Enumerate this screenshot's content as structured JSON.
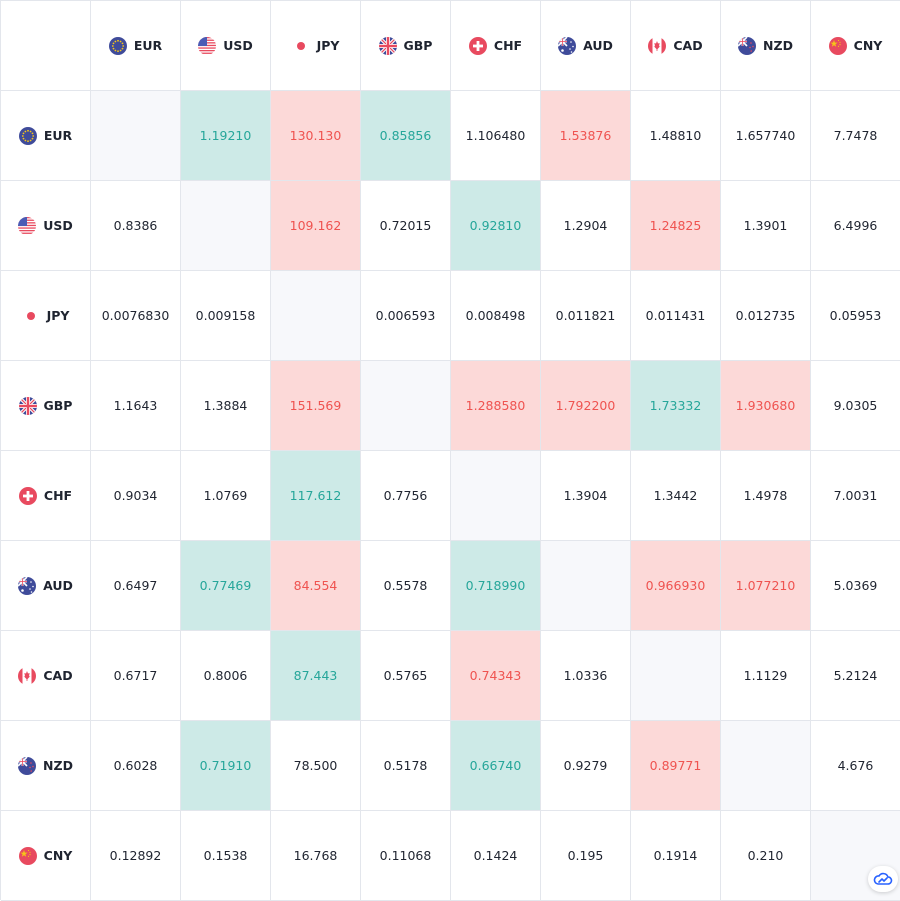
{
  "currencies": [
    {
      "code": "EUR",
      "flag_icon": "eu-flag-icon"
    },
    {
      "code": "USD",
      "flag_icon": "us-flag-icon"
    },
    {
      "code": "JPY",
      "flag_icon": "japan-flag-icon"
    },
    {
      "code": "GBP",
      "flag_icon": "uk-flag-icon"
    },
    {
      "code": "CHF",
      "flag_icon": "swiss-flag-icon"
    },
    {
      "code": "AUD",
      "flag_icon": "australia-flag-icon"
    },
    {
      "code": "CAD",
      "flag_icon": "canada-flag-icon"
    },
    {
      "code": "NZD",
      "flag_icon": "new-zealand-flag-icon"
    },
    {
      "code": "CNY",
      "flag_icon": "china-flag-icon"
    }
  ],
  "rates": [
    [
      "",
      "1.19210",
      "130.130",
      "0.85856",
      "1.106480",
      "1.53876",
      "1.48810",
      "1.657740",
      "7.7478"
    ],
    [
      "0.8386",
      "",
      "109.162",
      "0.72015",
      "0.92810",
      "1.2904",
      "1.24825",
      "1.3901",
      "6.4996"
    ],
    [
      "0.0076830",
      "0.009158",
      "",
      "0.006593",
      "0.008498",
      "0.011821",
      "0.011431",
      "0.012735",
      "0.05953"
    ],
    [
      "1.1643",
      "1.3884",
      "151.569",
      "",
      "1.288580",
      "1.792200",
      "1.73332",
      "1.930680",
      "9.0305"
    ],
    [
      "0.9034",
      "1.0769",
      "117.612",
      "0.7756",
      "",
      "1.3904",
      "1.3442",
      "1.4978",
      "7.0031"
    ],
    [
      "0.6497",
      "0.77469",
      "84.554",
      "0.5578",
      "0.718990",
      "",
      "0.966930",
      "1.077210",
      "5.0369"
    ],
    [
      "0.6717",
      "0.8006",
      "87.443",
      "0.5765",
      "0.74343",
      "1.0336",
      "",
      "1.1129",
      "5.2124"
    ],
    [
      "0.6028",
      "0.71910",
      "78.500",
      "0.5178",
      "0.66740",
      "0.9279",
      "0.89771",
      "",
      "4.676"
    ],
    [
      "0.12892",
      "0.1538",
      "16.768",
      "0.11068",
      "0.1424",
      "0.195",
      "0.1914",
      "0.210",
      ""
    ]
  ],
  "change": [
    [
      "self",
      "up",
      "down",
      "up",
      "none",
      "down",
      "none",
      "none",
      "none"
    ],
    [
      "none",
      "self",
      "down",
      "none",
      "up",
      "none",
      "down",
      "none",
      "none"
    ],
    [
      "none",
      "none",
      "self",
      "none",
      "none",
      "none",
      "none",
      "none",
      "none"
    ],
    [
      "none",
      "none",
      "down",
      "self",
      "down",
      "down",
      "up",
      "down",
      "none"
    ],
    [
      "none",
      "none",
      "up",
      "none",
      "self",
      "none",
      "none",
      "none",
      "none"
    ],
    [
      "none",
      "up",
      "down",
      "none",
      "up",
      "self",
      "down",
      "down",
      "none"
    ],
    [
      "none",
      "none",
      "up",
      "none",
      "down",
      "none",
      "self",
      "none",
      "none"
    ],
    [
      "none",
      "up",
      "none",
      "none",
      "up",
      "none",
      "down",
      "self",
      "none"
    ],
    [
      "none",
      "none",
      "none",
      "none",
      "none",
      "none",
      "none",
      "none",
      "self"
    ]
  ],
  "colors": {
    "up_bg": "#cdeae7",
    "up_text": "#26a69a",
    "down_bg": "#fcd9d8",
    "down_text": "#ef5350",
    "diagonal_bg": "#f7f8fb",
    "grid_line": "#e3e6ec"
  },
  "watermark_icon": "tradingview-cloud-icon"
}
